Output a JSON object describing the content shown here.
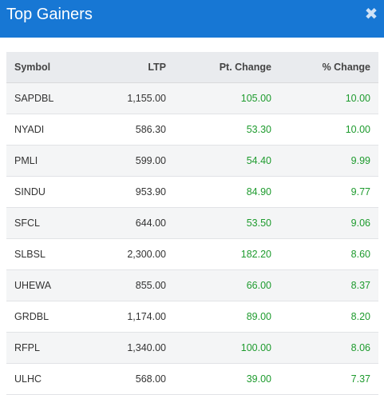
{
  "header": {
    "title": "Top Gainers",
    "close_glyph": "✖",
    "close_icon": "close-icon"
  },
  "colors": {
    "header_bg": "#1777d4",
    "positive": "#1e9b2e"
  },
  "table": {
    "columns": [
      "Symbol",
      "LTP",
      "Pt. Change",
      "% Change"
    ],
    "rows": [
      {
        "symbol": "SAPDBL",
        "ltp": "1,155.00",
        "pt_change": "105.00",
        "pct_change": "10.00"
      },
      {
        "symbol": "NYADI",
        "ltp": "586.30",
        "pt_change": "53.30",
        "pct_change": "10.00"
      },
      {
        "symbol": "PMLI",
        "ltp": "599.00",
        "pt_change": "54.40",
        "pct_change": "9.99"
      },
      {
        "symbol": "SINDU",
        "ltp": "953.90",
        "pt_change": "84.90",
        "pct_change": "9.77"
      },
      {
        "symbol": "SFCL",
        "ltp": "644.00",
        "pt_change": "53.50",
        "pct_change": "9.06"
      },
      {
        "symbol": "SLBSL",
        "ltp": "2,300.00",
        "pt_change": "182.20",
        "pct_change": "8.60"
      },
      {
        "symbol": "UHEWA",
        "ltp": "855.00",
        "pt_change": "66.00",
        "pct_change": "8.37"
      },
      {
        "symbol": "GRDBL",
        "ltp": "1,174.00",
        "pt_change": "89.00",
        "pct_change": "8.20"
      },
      {
        "symbol": "RFPL",
        "ltp": "1,340.00",
        "pt_change": "100.00",
        "pct_change": "8.06"
      },
      {
        "symbol": "ULHC",
        "ltp": "568.00",
        "pt_change": "39.00",
        "pct_change": "7.37"
      }
    ]
  }
}
